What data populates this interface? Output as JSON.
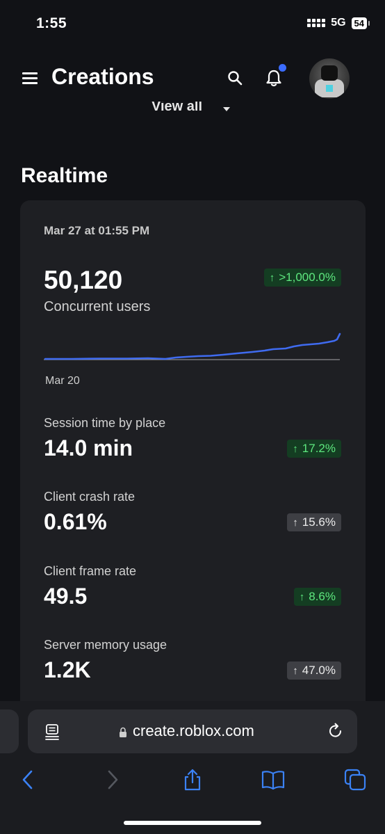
{
  "status_bar": {
    "time": "1:55",
    "network": "5G",
    "battery": "54"
  },
  "header": {
    "title": "Creations"
  },
  "view_all": "View all",
  "section_title": "Realtime",
  "card": {
    "date": "Mar 27 at 01:55 PM",
    "concurrent": {
      "value": "50,120",
      "label": "Concurrent users",
      "change": ">1,000.0%"
    },
    "chart_label": "Mar 20",
    "metrics": [
      {
        "label": "Session time by place",
        "value": "14.0 min",
        "change": "17.2%",
        "tone": "green"
      },
      {
        "label": "Client crash rate",
        "value": "0.61%",
        "change": "15.6%",
        "tone": "gray"
      },
      {
        "label": "Client frame rate",
        "value": "49.5",
        "change": "8.6%",
        "tone": "green"
      },
      {
        "label": "Server memory usage",
        "value": "1.2K",
        "change": "47.0%",
        "tone": "gray"
      }
    ]
  },
  "browser": {
    "url": "create.roblox.com"
  },
  "colors": {
    "accent": "#3b6cff",
    "positive": "#5ee87f",
    "toolbar_blue": "#3b82f6"
  }
}
